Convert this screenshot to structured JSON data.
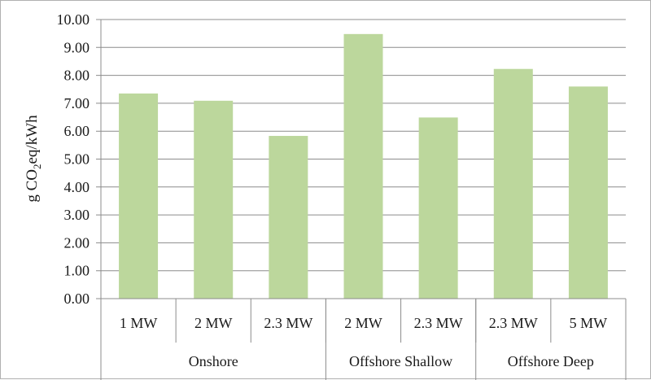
{
  "chart_data": {
    "type": "bar",
    "ylabel": "g CO2eq/kWh",
    "ylabel_parts": {
      "pre": "g CO",
      "sub": "2",
      "post": "eq/kWh"
    },
    "ylim": [
      0,
      10
    ],
    "yticks": [
      "0.00",
      "1.00",
      "2.00",
      "3.00",
      "4.00",
      "5.00",
      "6.00",
      "7.00",
      "8.00",
      "9.00",
      "10.00"
    ],
    "grid": true,
    "bar_color": "#bcd79c",
    "categories": [
      "1 MW",
      "2 MW",
      "2.3 MW",
      "2 MW",
      "2.3 MW",
      "2.3 MW",
      "5 MW"
    ],
    "groups": [
      {
        "label": "Onshore",
        "count": 3
      },
      {
        "label": "Offshore Shallow",
        "count": 2
      },
      {
        "label": "Offshore Deep",
        "count": 2
      }
    ],
    "values": [
      7.35,
      7.09,
      5.83,
      9.48,
      6.49,
      8.23,
      7.6
    ]
  }
}
